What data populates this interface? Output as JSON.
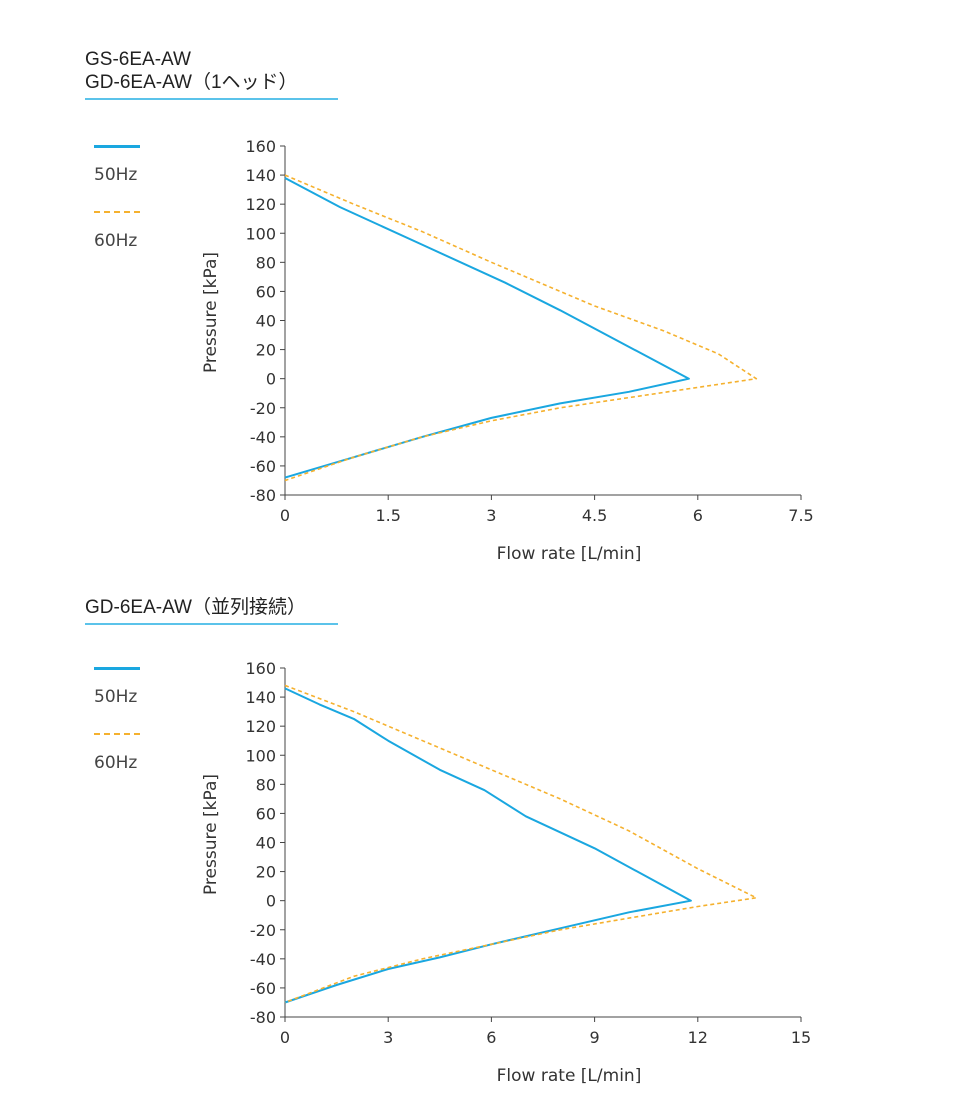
{
  "charts": [
    {
      "title_lines": [
        "GS-6EA-AW",
        "GD-6EA-AW（1ヘッド）"
      ],
      "legend": [
        {
          "label": "50Hz",
          "color": "#1aa7e0",
          "style": "solid"
        },
        {
          "label": "60Hz",
          "color": "#f5b12e",
          "style": "dashed"
        }
      ]
    },
    {
      "title_lines": [
        "GD-6EA-AW（並列接続）"
      ],
      "legend": [
        {
          "label": "50Hz",
          "color": "#1aa7e0",
          "style": "solid"
        },
        {
          "label": "60Hz",
          "color": "#f5b12e",
          "style": "dashed"
        }
      ]
    }
  ],
  "chart_data": [
    {
      "type": "line",
      "title": "GS-6EA-AW / GD-6EA-AW（1ヘッド）",
      "xlabel": "Flow rate [L/min]",
      "ylabel": "Pressure [kPa]",
      "xlim": [
        0,
        7.5
      ],
      "ylim": [
        -80,
        160
      ],
      "x_ticks": [
        "0",
        "1.5",
        "3",
        "4.5",
        "6",
        "7.5"
      ],
      "y_ticks": [
        "160",
        "140",
        "120",
        "100",
        "80",
        "60",
        "40",
        "20",
        "0",
        "-20",
        "-40",
        "-60",
        "-80"
      ],
      "series": [
        {
          "name": "50Hz",
          "color": "#1aa7e0",
          "style": "solid",
          "points": [
            [
              0,
              138
            ],
            [
              0.8,
              118
            ],
            [
              2,
              92
            ],
            [
              3.2,
              66
            ],
            [
              4,
              47
            ],
            [
              5.87,
              0
            ],
            [
              5,
              -9
            ],
            [
              4,
              -17
            ],
            [
              3,
              -27
            ],
            [
              2,
              -40
            ],
            [
              1,
              -54
            ],
            [
              0,
              -68
            ]
          ]
        },
        {
          "name": "60Hz",
          "color": "#f5b12e",
          "style": "dashed",
          "points": [
            [
              0,
              140
            ],
            [
              1,
              120
            ],
            [
              2,
              101
            ],
            [
              3,
              80
            ],
            [
              4,
              60
            ],
            [
              4.5,
              50
            ],
            [
              5.5,
              33
            ],
            [
              6.3,
              17
            ],
            [
              6.85,
              0
            ],
            [
              6,
              -6
            ],
            [
              5,
              -13
            ],
            [
              4,
              -20
            ],
            [
              3,
              -29
            ],
            [
              2,
              -40
            ],
            [
              1,
              -54
            ],
            [
              0,
              -70
            ]
          ]
        }
      ]
    },
    {
      "type": "line",
      "title": "GD-6EA-AW（並列接続）",
      "xlabel": "Flow rate [L/min]",
      "ylabel": "Pressure [kPa]",
      "xlim": [
        0,
        15
      ],
      "ylim": [
        -80,
        160
      ],
      "x_ticks": [
        "0",
        "3",
        "6",
        "9",
        "12",
        "15"
      ],
      "y_ticks": [
        "160",
        "140",
        "120",
        "100",
        "80",
        "60",
        "40",
        "20",
        "0",
        "-20",
        "-40",
        "-60",
        "-80"
      ],
      "series": [
        {
          "name": "50Hz",
          "color": "#1aa7e0",
          "style": "solid",
          "points": [
            [
              0,
              146
            ],
            [
              1,
              135
            ],
            [
              2,
              125
            ],
            [
              3,
              110
            ],
            [
              4.5,
              90
            ],
            [
              5.8,
              76
            ],
            [
              7,
              58
            ],
            [
              9,
              36
            ],
            [
              11.8,
              0
            ],
            [
              10,
              -8
            ],
            [
              8,
              -19
            ],
            [
              6,
              -30
            ],
            [
              4.5,
              -39
            ],
            [
              3,
              -47
            ],
            [
              1.5,
              -58
            ],
            [
              0,
              -70
            ]
          ]
        },
        {
          "name": "60Hz",
          "color": "#f5b12e",
          "style": "dashed",
          "points": [
            [
              0,
              148
            ],
            [
              2,
              130
            ],
            [
              4,
              110
            ],
            [
              6,
              90
            ],
            [
              8,
              70
            ],
            [
              10,
              48
            ],
            [
              12,
              22
            ],
            [
              13.7,
              2
            ],
            [
              12,
              -4
            ],
            [
              10,
              -12
            ],
            [
              8,
              -20
            ],
            [
              6,
              -30
            ],
            [
              4,
              -40
            ],
            [
              2,
              -52
            ],
            [
              0,
              -70
            ]
          ]
        }
      ]
    }
  ]
}
